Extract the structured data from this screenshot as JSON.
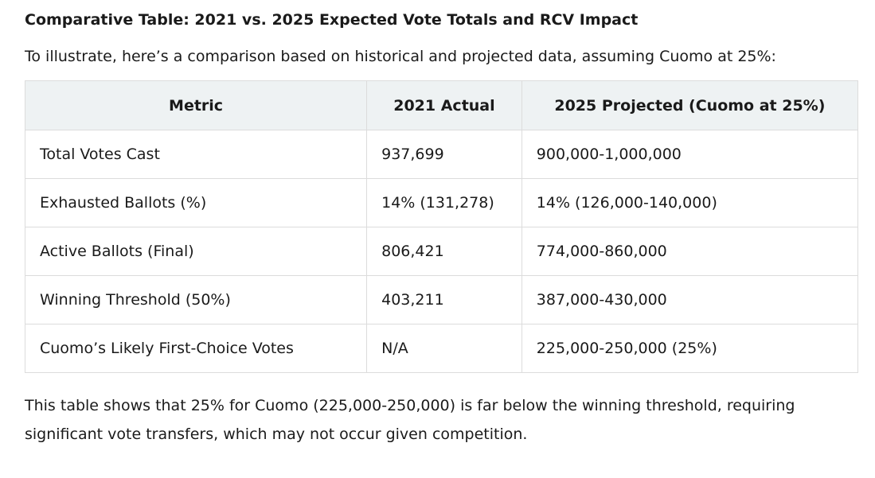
{
  "heading": "Comparative Table: 2021 vs. 2025 Expected Vote Totals and RCV Impact",
  "intro": "To illustrate, here’s a comparison based on historical and projected data, assuming Cuomo at 25%:",
  "table": {
    "headers": [
      "Metric",
      "2021 Actual",
      "2025 Projected (Cuomo at 25%)"
    ],
    "rows": [
      [
        "Total Votes Cast",
        "937,699",
        "900,000-1,000,000"
      ],
      [
        "Exhausted Ballots (%)",
        "14% (131,278)",
        "14% (126,000-140,000)"
      ],
      [
        "Active Ballots (Final)",
        "806,421",
        "774,000-860,000"
      ],
      [
        "Winning Threshold (50%)",
        "403,211",
        "387,000-430,000"
      ],
      [
        "Cuomo’s Likely First-Choice Votes",
        "N/A",
        "225,000-250,000 (25%)"
      ]
    ]
  },
  "footer": "This table shows that 25% for Cuomo (225,000-250,000) is far below the winning threshold, requiring significant vote transfers, which may not occur given competition."
}
